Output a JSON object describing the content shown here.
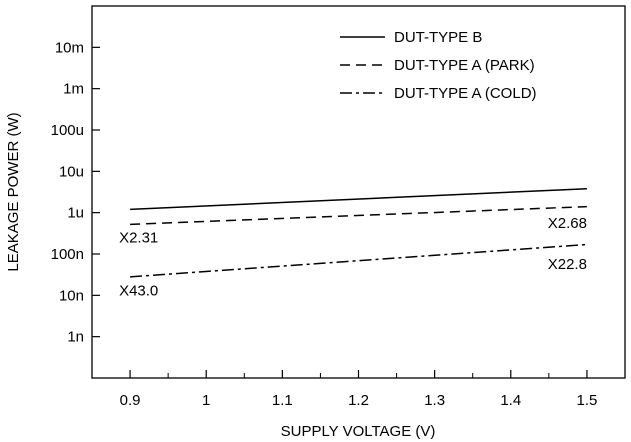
{
  "chart_data": {
    "type": "line",
    "title": "",
    "xlabel": "SUPPLY VOLTAGE (V)",
    "ylabel": "LEAKAGE POWER  (W)",
    "x_scale": "linear",
    "y_scale": "log",
    "xlim": [
      0.85,
      1.55
    ],
    "ylim": [
      1e-10,
      0.1
    ],
    "x_ticks": [
      0.9,
      1.0,
      1.1,
      1.2,
      1.3,
      1.4,
      1.5
    ],
    "x_tick_labels": [
      "0.9",
      "1",
      "1.1",
      "1.2",
      "1.3",
      "1.4",
      "1.5"
    ],
    "x_minor_ticks": [
      0.95,
      1.05,
      1.15,
      1.25,
      1.35,
      1.45
    ],
    "y_ticks": [
      1e-09,
      1e-08,
      1e-07,
      1e-06,
      1e-05,
      0.0001,
      0.001,
      0.01
    ],
    "y_tick_labels": [
      "1n",
      "10n",
      "100n",
      "1u",
      "10u",
      "100u",
      "1m",
      "10m"
    ],
    "grid": false,
    "legend_position": "top-right",
    "series": [
      {
        "name": "DUT-TYPE B",
        "dash": "solid",
        "x": [
          0.9,
          1.5
        ],
        "y": [
          1.2e-06,
          3.8e-06
        ]
      },
      {
        "name": "DUT-TYPE A (PARK)",
        "dash": "dashed",
        "x": [
          0.9,
          1.5
        ],
        "y": [
          5.2e-07,
          1.4e-06
        ]
      },
      {
        "name": "DUT-TYPE A (COLD)",
        "dash": "dash-dot",
        "x": [
          0.9,
          1.5
        ],
        "y": [
          2.8e-08,
          1.7e-07
        ]
      }
    ],
    "annotations": [
      {
        "text": "X2.31",
        "x": 0.9,
        "y": 1.9e-07,
        "anchor": "start"
      },
      {
        "text": "X43.0",
        "x": 0.9,
        "y": 1e-08,
        "anchor": "start"
      },
      {
        "text": "X2.68",
        "x": 1.5,
        "y": 4.3e-07,
        "anchor": "end"
      },
      {
        "text": "X22.8",
        "x": 1.5,
        "y": 4.3e-08,
        "anchor": "end"
      }
    ]
  }
}
